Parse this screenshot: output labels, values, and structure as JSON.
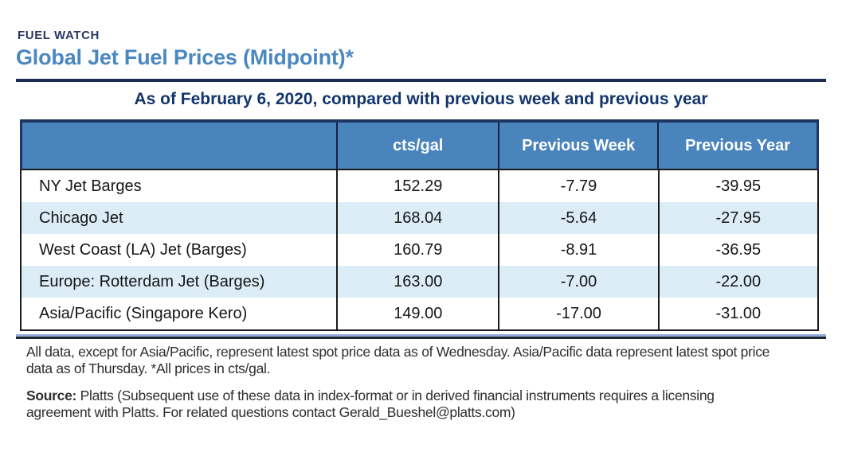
{
  "header": {
    "eyebrow": "FUEL WATCH",
    "title": "Global Jet Fuel Prices (Midpoint)*",
    "subtitle": "As of February 6, 2020, compared with previous week and previous year"
  },
  "table": {
    "columns": [
      "",
      "cts/gal",
      "Previous Week",
      "Previous Year"
    ],
    "rows": [
      {
        "name": "NY Jet Barges",
        "cts_gal": "152.29",
        "prev_week": "-7.79",
        "prev_year": "-39.95"
      },
      {
        "name": "Chicago Jet",
        "cts_gal": "168.04",
        "prev_week": "-5.64",
        "prev_year": "-27.95"
      },
      {
        "name": "West Coast (LA) Jet (Barges)",
        "cts_gal": "160.79",
        "prev_week": "-8.91",
        "prev_year": "-36.95"
      },
      {
        "name": "Europe: Rotterdam Jet (Barges)",
        "cts_gal": "163.00",
        "prev_week": "-7.00",
        "prev_year": "-22.00"
      },
      {
        "name": "Asia/Pacific (Singapore Kero)",
        "cts_gal": "149.00",
        "prev_week": "-17.00",
        "prev_year": "-31.00"
      }
    ]
  },
  "chart_data": {
    "type": "table",
    "title": "Global Jet Fuel Prices (Midpoint)*",
    "subtitle": "As of February 6, 2020, compared with previous week and previous year",
    "columns": [
      "",
      "cts/gal",
      "Previous Week",
      "Previous Year"
    ],
    "rows": [
      [
        "NY Jet Barges",
        152.29,
        -7.79,
        -39.95
      ],
      [
        "Chicago Jet",
        168.04,
        -5.64,
        -27.95
      ],
      [
        "West Coast (LA) Jet (Barges)",
        160.79,
        -8.91,
        -36.95
      ],
      [
        "Europe: Rotterdam Jet (Barges)",
        163.0,
        -7.0,
        -22.0
      ],
      [
        "Asia/Pacific (Singapore Kero)",
        149.0,
        -17.0,
        -31.0
      ]
    ]
  },
  "footnote": "All data, except for Asia/Pacific, represent latest spot price data as of Wednesday. Asia/Pacific data represent latest spot price data as of Thursday. *All prices in cts/gal.",
  "source": {
    "label": "Source:",
    "text": " Platts (Subsequent use of these data in index-format or in derived financial instruments requires a licensing agreement with Platts. For related questions contact Gerald_Bueshel@platts.com)"
  },
  "colors": {
    "eyebrow": "#2b3566",
    "title": "#4b87c0",
    "rule": "#1b2b52",
    "subtitle": "#12356d",
    "header-bg": "#4a84bc",
    "header-border": "#1e3563",
    "stripe": "#dcedf8",
    "band": "#93aad6"
  }
}
